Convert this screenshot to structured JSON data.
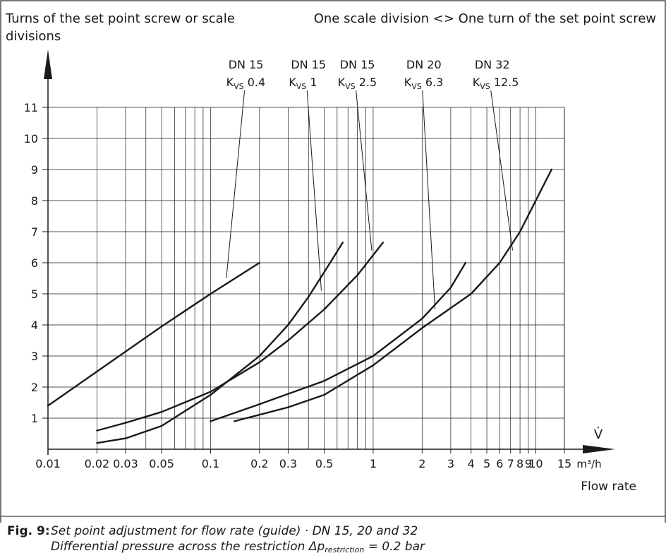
{
  "chart_data": {
    "type": "line",
    "title": "",
    "ylabel": "Turns of the set point screw or scale divisions",
    "ylabel_lines": [
      "Turns of the set point screw or scale",
      "divisions"
    ],
    "note": "One scale division <> One turn of the set point screw",
    "xlabel": "Flow rate",
    "x_symbol": "V̇",
    "x_unit": "m³/h",
    "x_scale": "log",
    "xlim": [
      0.01,
      15
    ],
    "ylim": [
      0,
      11
    ],
    "x_ticks": [
      0.01,
      0.02,
      0.03,
      0.05,
      0.1,
      0.2,
      0.3,
      0.5,
      1,
      2,
      3,
      4,
      5,
      6,
      7,
      8,
      9,
      10,
      15
    ],
    "x_tick_labels": [
      "0.01",
      "0.02",
      "0.03",
      "0.05",
      "0.1",
      "0.2",
      "0.3",
      "0.5",
      "1",
      "2",
      "3",
      "4",
      "5",
      "6",
      "7",
      "8",
      "9",
      "10",
      "15"
    ],
    "y_ticks": [
      1,
      2,
      3,
      4,
      5,
      6,
      7,
      8,
      9,
      10,
      11
    ],
    "grid": true,
    "series": [
      {
        "name_lines": [
          "DN 15",
          "K",
          "VS",
          " 0.4"
        ],
        "label_x": 0.165,
        "label_y": 12.95,
        "leader_to": [
          0.125,
          5.5
        ],
        "x": [
          0.01,
          0.02,
          0.05,
          0.1,
          0.2
        ],
        "y": [
          1.4,
          2.5,
          3.95,
          5.0,
          6.0
        ]
      },
      {
        "name_lines": [
          "DN 15",
          "K",
          "VS",
          " 1"
        ],
        "label_x": 0.4,
        "label_y": 12.95,
        "leader_to": [
          0.48,
          5.1
        ],
        "x": [
          0.02,
          0.03,
          0.05,
          0.1,
          0.2,
          0.3,
          0.4,
          0.5,
          0.65
        ],
        "y": [
          0.2,
          0.35,
          0.75,
          1.75,
          3.0,
          4.0,
          4.9,
          5.7,
          6.65
        ]
      },
      {
        "name_lines": [
          "DN 15",
          "K",
          "VS",
          " 2.5"
        ],
        "label_x": 0.8,
        "label_y": 12.95,
        "leader_to": [
          0.98,
          6.4
        ],
        "x": [
          0.02,
          0.03,
          0.05,
          0.1,
          0.2,
          0.3,
          0.5,
          0.8,
          1.15
        ],
        "y": [
          0.6,
          0.85,
          1.2,
          1.85,
          2.8,
          3.5,
          4.5,
          5.6,
          6.65
        ]
      },
      {
        "name_lines": [
          "DN 20",
          "K",
          "VS",
          " 6.3"
        ],
        "label_x": 2.05,
        "label_y": 12.95,
        "leader_to": [
          2.4,
          4.5
        ],
        "x": [
          0.1,
          0.2,
          0.5,
          1.0,
          2.0,
          3.0,
          3.7
        ],
        "y": [
          0.9,
          1.45,
          2.2,
          3.0,
          4.2,
          5.2,
          6.0
        ]
      },
      {
        "name_lines": [
          "DN 32",
          "K",
          "VS",
          " 12.5"
        ],
        "label_x": 5.4,
        "label_y": 12.95,
        "leader_to": [
          7.2,
          6.4
        ],
        "x": [
          0.14,
          0.3,
          0.5,
          1.0,
          2.0,
          4.0,
          6.0,
          8.0,
          10.0,
          12.5
        ],
        "y": [
          0.9,
          1.35,
          1.75,
          2.7,
          3.9,
          5.0,
          6.0,
          7.0,
          8.0,
          9.0
        ]
      }
    ]
  },
  "caption": {
    "label": "Fig. 9:",
    "line1": "Set point adjustment for flow rate (guide) · DN 15, 20 and 32",
    "line2_prefix": "Differential pressure across the restriction Δp",
    "line2_sub": "restriction",
    "line2_suffix": " = 0.2 bar"
  }
}
